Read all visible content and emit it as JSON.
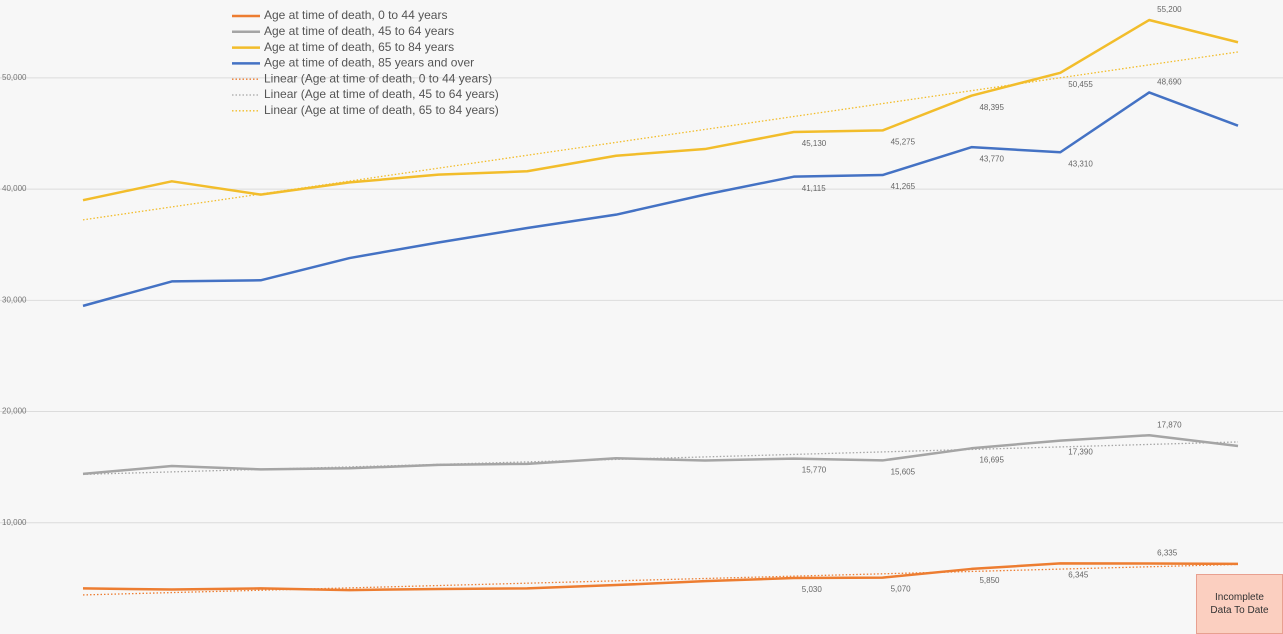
{
  "chart_data": {
    "type": "line",
    "categories": [
      null,
      null,
      null,
      null,
      null,
      null,
      null,
      null,
      null,
      null,
      null,
      null,
      null,
      null
    ],
    "series": [
      {
        "name": "Age at time of death, 0 to 44 years",
        "color": "#ed7d31",
        "values": [
          4100,
          4000,
          4100,
          3950,
          4050,
          4100,
          4400,
          4750,
          5030,
          5070,
          5850,
          6345,
          6335,
          6300
        ],
        "value_labels": [
          null,
          null,
          null,
          null,
          null,
          null,
          null,
          null,
          "5,030",
          "5,070",
          "5,850",
          "6,345",
          "6,335",
          null
        ]
      },
      {
        "name": "Age at time of death, 45 to 64 years",
        "color": "#a5a5a5",
        "values": [
          14400,
          15100,
          14800,
          14900,
          15200,
          15300,
          15800,
          15600,
          15770,
          15605,
          16695,
          17390,
          17870,
          16900
        ],
        "value_labels": [
          null,
          null,
          null,
          null,
          null,
          null,
          null,
          null,
          "15,770",
          "15,605",
          "16,695",
          "17,390",
          "17,870",
          null
        ]
      },
      {
        "name": "Age at time of death, 65 to 84 years",
        "color": "#f2bd2b",
        "values": [
          39000,
          40700,
          39500,
          40600,
          41300,
          41600,
          43000,
          43600,
          45130,
          45275,
          48395,
          50455,
          55200,
          53200
        ],
        "value_labels": [
          null,
          null,
          null,
          null,
          null,
          null,
          null,
          null,
          "45,130",
          "45,275",
          "48,395",
          "50,455",
          "55,200",
          null
        ]
      },
      {
        "name": "Age at time of death, 85 years and over",
        "color": "#4472c4",
        "values": [
          29500,
          31700,
          31800,
          33800,
          35200,
          36500,
          37700,
          39500,
          41115,
          41265,
          43770,
          43310,
          48690,
          45700
        ],
        "value_labels": [
          null,
          null,
          null,
          null,
          null,
          null,
          null,
          null,
          "41,115",
          "41,265",
          "43,770",
          "43,310",
          "48,690",
          null
        ]
      }
    ],
    "trendlines": [
      {
        "name": "Linear (Age at time of death, 0 to 44 years)",
        "color": "#ed7d31"
      },
      {
        "name": "Linear (Age at time of death, 45 to 64 years)",
        "color": "#a5a5a5"
      },
      {
        "name": "Linear (Age at time of death, 65 to 84 years)",
        "color": "#f2bd2b"
      }
    ],
    "ylim": [
      0,
      57000
    ],
    "yticks": [
      {
        "value": 10000,
        "label": "10,000"
      },
      {
        "value": 20000,
        "label": "20,000"
      },
      {
        "value": 30000,
        "label": "30,000"
      },
      {
        "value": 40000,
        "label": "40,000"
      },
      {
        "value": 50000,
        "label": "50,000"
      }
    ],
    "grid": true,
    "legend": "top-left",
    "annotation": "Incomplete Data To Date"
  }
}
